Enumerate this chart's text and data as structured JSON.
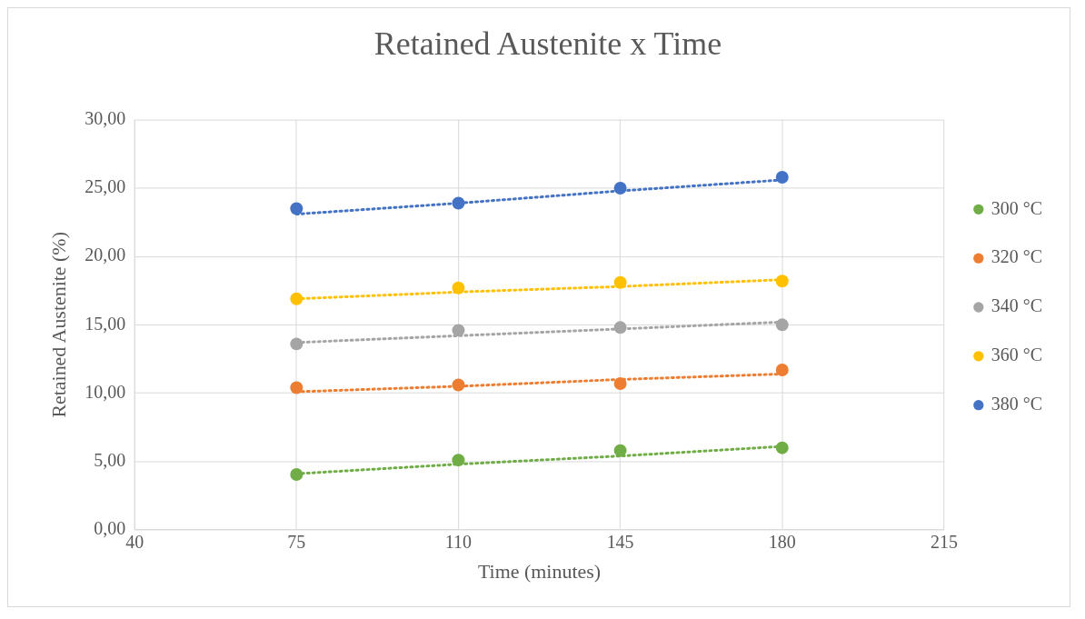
{
  "chart_data": {
    "type": "scatter",
    "title": "Retained Austenite x Time",
    "xlabel": "Time (minutes)",
    "ylabel": "Retained Austenite (%)",
    "xlim": [
      40,
      215
    ],
    "xticks": [
      40,
      75,
      110,
      145,
      180,
      215
    ],
    "ylim": [
      0,
      30
    ],
    "yticks": [
      {
        "value": 0,
        "label": "0,00"
      },
      {
        "value": 5,
        "label": "5,00"
      },
      {
        "value": 10,
        "label": "10,00"
      },
      {
        "value": 15,
        "label": "15,00"
      },
      {
        "value": 20,
        "label": "20,00"
      },
      {
        "value": 25,
        "label": "25,00"
      },
      {
        "value": 30,
        "label": "30,00"
      }
    ],
    "grid": true,
    "legend": "right",
    "marker": "circle",
    "x": [
      75,
      110,
      145,
      180
    ],
    "series": [
      {
        "name": "300 °C",
        "color": "#70ad47",
        "values": [
          4.05,
          5.1,
          5.8,
          6.0
        ]
      },
      {
        "name": "320 °C",
        "color": "#ed7d31",
        "values": [
          10.4,
          10.6,
          10.7,
          11.7
        ]
      },
      {
        "name": "340 °C",
        "color": "#a5a5a5",
        "values": [
          13.6,
          14.6,
          14.8,
          15.0
        ]
      },
      {
        "name": "360 °C",
        "color": "#ffc000",
        "values": [
          16.9,
          17.7,
          18.1,
          18.2
        ]
      },
      {
        "name": "380 °C",
        "color": "#4472c4",
        "values": [
          23.5,
          23.9,
          25.0,
          25.8
        ]
      },
      {
        "type": "line",
        "color": "#70ad47",
        "values": [
          4.1,
          4.8,
          5.4,
          6.1
        ],
        "line_style": "dotted",
        "marker": "none"
      },
      {
        "type": "line",
        "color": "#ed7d31",
        "values": [
          10.1,
          10.5,
          11.0,
          11.4
        ],
        "line_style": "dotted",
        "marker": "none"
      },
      {
        "type": "line",
        "color": "#a5a5a5",
        "values": [
          13.7,
          14.2,
          14.7,
          15.2
        ],
        "line_style": "dotted",
        "marker": "none"
      },
      {
        "type": "line",
        "color": "#ffc000",
        "values": [
          16.9,
          17.4,
          17.8,
          18.3
        ],
        "line_style": "dotted",
        "marker": "none"
      },
      {
        "type": "line",
        "color": "#4472c4",
        "values": [
          23.1,
          23.9,
          24.8,
          25.6
        ],
        "line_style": "dotted",
        "marker": "none"
      }
    ]
  }
}
